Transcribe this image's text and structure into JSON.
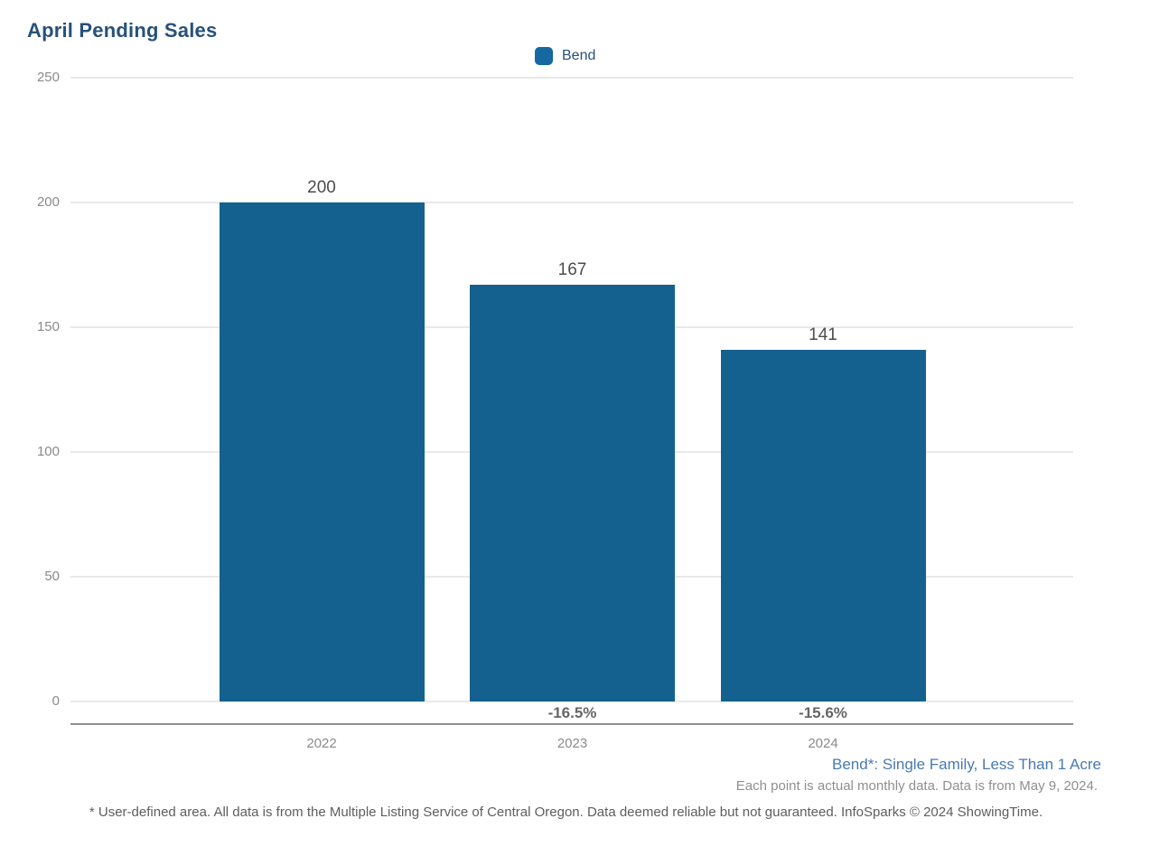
{
  "page": {
    "title": "April Pending Sales"
  },
  "legend": {
    "label": "Bend"
  },
  "colors": {
    "bar": "#14618F",
    "legend_swatch": "#1568A0",
    "title_text": "#27517B",
    "series_note_text": "#4A7AB1",
    "gridline": "#E9E9E9",
    "axis_line": "#8F8F8F"
  },
  "chart_data": {
    "type": "bar",
    "title": "April Pending Sales",
    "categories": [
      "2022",
      "2023",
      "2024"
    ],
    "series": [
      {
        "name": "Bend",
        "values": [
          200,
          167,
          141
        ]
      }
    ],
    "value_labels": [
      "200",
      "167",
      "141"
    ],
    "change_labels": [
      "",
      "-16.5%",
      "-15.6%"
    ],
    "xlabel": "",
    "ylabel": "",
    "ylim": [
      0,
      250
    ],
    "yticks": [
      250,
      200,
      150,
      100,
      50,
      0
    ],
    "grid": true,
    "legend_entries": [
      "Bend"
    ],
    "legend_position": "top-center",
    "bar_color": "#14618F"
  },
  "footnotes": {
    "series_note": "Bend*: Single Family, Less Than 1 Acre",
    "data_note": "Each point is actual monthly data. Data is from May 9, 2024.",
    "disclaimer": "* User-defined area. All data is from the Multiple Listing Service of Central Oregon. Data deemed reliable but not guaranteed. InfoSparks © 2024 ShowingTime."
  }
}
